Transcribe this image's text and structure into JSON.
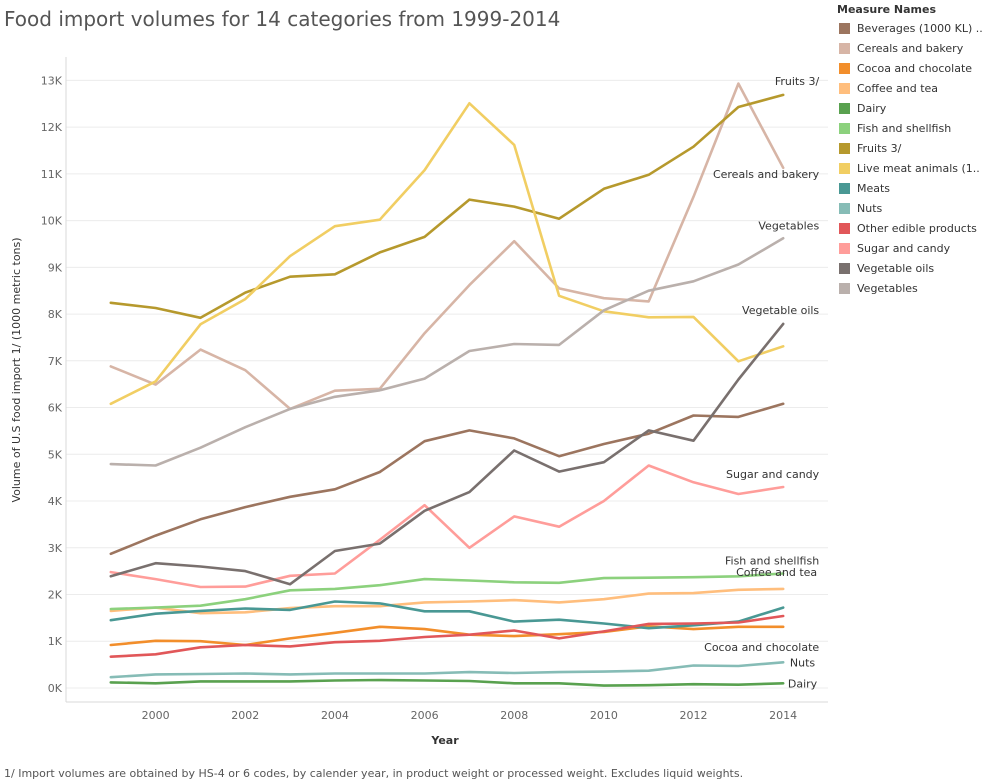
{
  "title": "Food import volumes for 14 categories from 1999-2014",
  "footnote": "1/ Import volumes are obtained by HS-4 or 6 codes, by calender year, in product weight or processed weight. Excludes liquid weights.",
  "legend": {
    "title": "Measure Names",
    "items": [
      {
        "label": "Beverages (1000 KL) ..",
        "color": "#9c755f"
      },
      {
        "label": "Cereals and bakery",
        "color": "#d7b5a6"
      },
      {
        "label": "Cocoa and chocolate",
        "color": "#f28e2b"
      },
      {
        "label": "Coffee and tea",
        "color": "#ffbe7d"
      },
      {
        "label": "Dairy",
        "color": "#59a14f"
      },
      {
        "label": "Fish and shellfish",
        "color": "#8cd17d"
      },
      {
        "label": "Fruits 3/",
        "color": "#b6992d"
      },
      {
        "label": "Live meat animals (1..",
        "color": "#f1ce63"
      },
      {
        "label": "Meats",
        "color": "#499894"
      },
      {
        "label": "Nuts",
        "color": "#86bcb6"
      },
      {
        "label": "Other edible products",
        "color": "#e15759"
      },
      {
        "label": "Sugar and candy",
        "color": "#ff9d9a"
      },
      {
        "label": "Vegetable oils",
        "color": "#79706e"
      },
      {
        "label": "Vegetables",
        "color": "#bab0ac"
      }
    ]
  },
  "chart_data": {
    "type": "line",
    "xlabel": "Year",
    "ylabel": "Volume of U.S food import 1/ (1000 metric tons)",
    "xlim": [
      1998,
      2015
    ],
    "ylim": [
      -300,
      13500
    ],
    "x": [
      1999,
      2000,
      2001,
      2002,
      2003,
      2004,
      2005,
      2006,
      2007,
      2008,
      2009,
      2010,
      2011,
      2012,
      2013,
      2014
    ],
    "x_ticks": [
      2000,
      2002,
      2004,
      2006,
      2008,
      2010,
      2012,
      2014
    ],
    "x_tick_labels": [
      "2000",
      "2002",
      "2004",
      "2006",
      "2008",
      "2010",
      "2012",
      "2014"
    ],
    "y_ticks": [
      0,
      1000,
      2000,
      3000,
      4000,
      5000,
      6000,
      7000,
      8000,
      9000,
      10000,
      11000,
      12000,
      13000
    ],
    "y_tick_labels": [
      "0K",
      "1K",
      "2K",
      "3K",
      "4K",
      "5K",
      "6K",
      "7K",
      "8K",
      "9K",
      "10K",
      "11K",
      "12K",
      "13K"
    ],
    "grid": "horizontal",
    "legend_position": "right",
    "series": [
      {
        "name": "Beverages (1000 KL) ..",
        "color": "#9c755f",
        "values": [
          2870,
          3260,
          3610,
          3870,
          4090,
          4250,
          4620,
          5280,
          5510,
          5340,
          4960,
          5220,
          5440,
          5830,
          5800,
          6080
        ]
      },
      {
        "name": "Cereals and bakery",
        "color": "#d7b5a6",
        "values": [
          6880,
          6490,
          7240,
          6800,
          5970,
          6360,
          6400,
          7590,
          8620,
          9560,
          8550,
          8340,
          8270,
          10510,
          12930,
          11130
        ]
      },
      {
        "name": "Cocoa and chocolate",
        "color": "#f28e2b",
        "values": [
          920,
          1010,
          1000,
          920,
          1060,
          1180,
          1310,
          1260,
          1140,
          1110,
          1150,
          1200,
          1320,
          1260,
          1310,
          1310
        ]
      },
      {
        "name": "Coffee and tea",
        "color": "#ffbe7d",
        "values": [
          1650,
          1720,
          1600,
          1620,
          1710,
          1750,
          1750,
          1830,
          1850,
          1880,
          1830,
          1900,
          2020,
          2030,
          2100,
          2120
        ]
      },
      {
        "name": "Dairy",
        "color": "#59a14f",
        "values": [
          120,
          100,
          140,
          140,
          140,
          160,
          170,
          160,
          150,
          100,
          100,
          50,
          60,
          80,
          70,
          100
        ]
      },
      {
        "name": "Fish and shellfish",
        "color": "#8cd17d",
        "values": [
          1690,
          1720,
          1760,
          1900,
          2090,
          2120,
          2200,
          2330,
          2300,
          2260,
          2250,
          2350,
          2360,
          2370,
          2390,
          2450
        ]
      },
      {
        "name": "Fruits 3/",
        "color": "#b6992d",
        "values": [
          8240,
          8130,
          7920,
          8460,
          8800,
          8850,
          9320,
          9650,
          10450,
          10300,
          10040,
          10680,
          10980,
          11580,
          12430,
          12690
        ]
      },
      {
        "name": "Live meat animals (1..",
        "color": "#f1ce63",
        "values": [
          6080,
          6560,
          7780,
          8320,
          9240,
          9880,
          10020,
          11080,
          12510,
          11620,
          8390,
          8060,
          7930,
          7940,
          6990,
          7310
        ]
      },
      {
        "name": "Meats",
        "color": "#499894",
        "values": [
          1450,
          1590,
          1650,
          1700,
          1670,
          1850,
          1810,
          1640,
          1640,
          1420,
          1460,
          1380,
          1280,
          1340,
          1420,
          1720
        ]
      },
      {
        "name": "Nuts",
        "color": "#86bcb6",
        "values": [
          230,
          290,
          300,
          310,
          290,
          310,
          310,
          310,
          340,
          320,
          340,
          350,
          370,
          480,
          470,
          550
        ]
      },
      {
        "name": "Other edible products",
        "color": "#e15759",
        "values": [
          670,
          720,
          870,
          920,
          890,
          980,
          1010,
          1090,
          1140,
          1230,
          1060,
          1210,
          1370,
          1380,
          1400,
          1540
        ]
      },
      {
        "name": "Sugar and candy",
        "color": "#ff9d9a",
        "values": [
          2480,
          2330,
          2160,
          2170,
          2400,
          2450,
          3170,
          3910,
          3000,
          3670,
          3450,
          4000,
          4760,
          4400,
          4150,
          4300
        ]
      },
      {
        "name": "Vegetable oils",
        "color": "#79706e",
        "values": [
          2390,
          2670,
          2600,
          2500,
          2220,
          2930,
          3090,
          3790,
          4190,
          5080,
          4630,
          4830,
          5510,
          5290,
          6600,
          7790
        ]
      },
      {
        "name": "Vegetables",
        "color": "#bab0ac",
        "values": [
          4790,
          4760,
          5140,
          5580,
          5970,
          6230,
          6370,
          6620,
          7210,
          7360,
          7340,
          8080,
          8500,
          8700,
          9060,
          9620
        ]
      }
    ],
    "annotations": [
      {
        "text": "Fruits 3/",
        "series": "Fruits 3/"
      },
      {
        "text": "Cereals and bakery",
        "series": "Cereals and bakery"
      },
      {
        "text": "Vegetables",
        "series": "Vegetables"
      },
      {
        "text": "Vegetable oils",
        "series": "Vegetable oils"
      },
      {
        "text": "Sugar and candy",
        "series": "Sugar and candy"
      },
      {
        "text": "Fish and shellfish",
        "series": "Fish and shellfish"
      },
      {
        "text": "Coffee and tea",
        "series": "Coffee and tea"
      },
      {
        "text": "Cocoa and chocolate",
        "series": "Cocoa and chocolate"
      },
      {
        "text": "Nuts",
        "series": "Nuts"
      },
      {
        "text": "Dairy",
        "series": "Dairy"
      }
    ]
  }
}
